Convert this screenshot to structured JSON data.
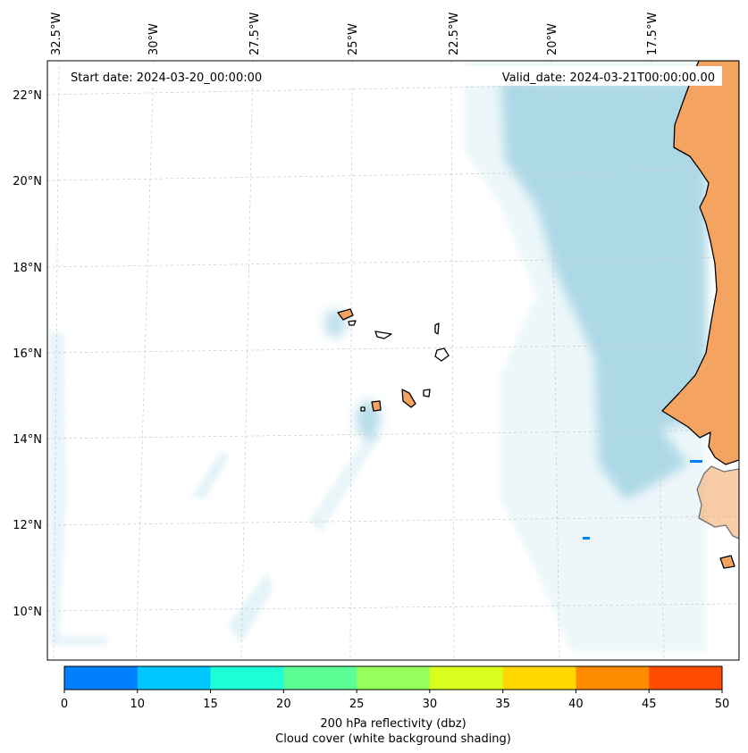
{
  "header": {
    "start_date": "Start date: 2024-03-20_00:00:00",
    "valid_date": "Valid_date: 2024-03-21T00:00:00.00"
  },
  "map": {
    "lon_labels": [
      "32.5°W",
      "30°W",
      "27.5°W",
      "25°W",
      "22.5°W",
      "20°W",
      "17.5°W"
    ],
    "lat_labels": [
      "22°N",
      "20°N",
      "18°N",
      "16°N",
      "14°N",
      "12°N",
      "10°N"
    ],
    "colors": {
      "land": "#f4a460",
      "cloud_dense": "#add8e6",
      "cloud_light": "#d8eef5",
      "gridline": "#c8c8c8",
      "coastline": "#000000"
    }
  },
  "colorbar": {
    "ticks": [
      "0",
      "10",
      "15",
      "20",
      "25",
      "30",
      "35",
      "40",
      "45",
      "50"
    ],
    "colors": [
      "#007fff",
      "#00c7ff",
      "#1effd8",
      "#5bff96",
      "#96ff5b",
      "#d8ff1e",
      "#ffd800",
      "#ff8c00",
      "#ff4b00"
    ],
    "label_line1": "200 hPa reflectivity (dbz)",
    "label_line2": "Cloud cover (white background shading)"
  }
}
